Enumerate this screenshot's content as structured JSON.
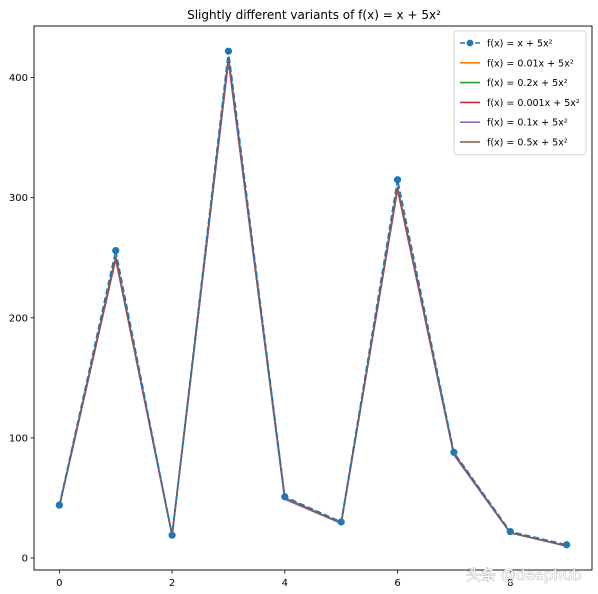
{
  "watermark": "头条 @deephub",
  "chart_data": {
    "type": "line",
    "title": "Slightly different variants of f(x) = x + 5x²",
    "xlabel": "",
    "ylabel": "",
    "xlim": [
      -0.45,
      9.45
    ],
    "ylim": [
      -10,
      443
    ],
    "xticks": [
      0,
      2,
      4,
      6,
      8
    ],
    "yticks": [
      0,
      100,
      200,
      300,
      400
    ],
    "grid": false,
    "legend_position": "top-right",
    "x": [
      0,
      1,
      2,
      3,
      4,
      5,
      6,
      7,
      8,
      9
    ],
    "series": [
      {
        "name": "f(x) = x + 5x²",
        "color": "#1f77b4",
        "style": "dashed",
        "marker": "circle",
        "values": [
          44,
          256,
          19,
          422,
          51,
          30,
          315,
          88,
          22,
          11
        ]
      },
      {
        "name": "f(x) = 0.01x + 5x²",
        "color": "#ff7f0e",
        "style": "solid",
        "values": [
          43,
          249,
          19,
          414,
          49,
          29,
          307,
          86,
          21,
          10
        ]
      },
      {
        "name": "f(x) = 0.2x + 5x²",
        "color": "#2ca02c",
        "style": "solid",
        "values": [
          43,
          250,
          19,
          416,
          49,
          29,
          308,
          86,
          21,
          10
        ]
      },
      {
        "name": "f(x) = 0.001x + 5x²",
        "color": "#d62728",
        "style": "solid",
        "values": [
          43,
          249,
          19,
          414,
          49,
          29,
          307,
          86,
          21,
          10
        ]
      },
      {
        "name": "f(x) = 0.1x + 5x²",
        "color": "#9467bd",
        "style": "solid",
        "values": [
          43,
          250,
          19,
          415,
          49,
          29,
          308,
          86,
          21,
          10
        ]
      },
      {
        "name": "f(x) = 0.5x + 5x²",
        "color": "#8c564b",
        "style": "solid",
        "values": [
          43,
          251,
          19,
          417,
          50,
          29,
          309,
          87,
          21,
          10
        ]
      }
    ]
  }
}
